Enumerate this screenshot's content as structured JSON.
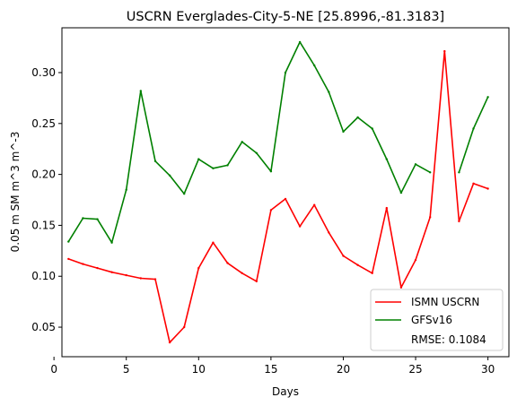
{
  "chart_data": {
    "type": "line",
    "title": "USCRN Everglades-City-5-NE [25.8996,-81.3183]",
    "xlabel": "Days",
    "ylabel": "0.05 m SM m^3 m^-3",
    "xlim": [
      0.55,
      31.45
    ],
    "ylim": [
      0.021,
      0.344
    ],
    "xticks": [
      0,
      5,
      10,
      15,
      20,
      25,
      30
    ],
    "xtick_labels": [
      "0",
      "5",
      "10",
      "15",
      "20",
      "25",
      "30"
    ],
    "yticks": [
      0.05,
      0.1,
      0.15,
      0.2,
      0.25,
      0.3
    ],
    "ytick_labels": [
      "0.05",
      "0.10",
      "0.15",
      "0.20",
      "0.25",
      "0.30"
    ],
    "grid": false,
    "legend_position": "lower-right",
    "annotation": "RMSE: 0.1084",
    "x": [
      1,
      2,
      3,
      4,
      5,
      6,
      7,
      8,
      9,
      10,
      11,
      12,
      13,
      14,
      15,
      16,
      17,
      18,
      19,
      20,
      21,
      22,
      23,
      24,
      25,
      26,
      27,
      28,
      29,
      30
    ],
    "series": [
      {
        "name": "ISMN USCRN",
        "color": "#ff0000",
        "values": [
          0.117,
          0.112,
          0.108,
          0.104,
          0.101,
          0.098,
          0.097,
          0.035,
          0.05,
          0.108,
          0.133,
          0.113,
          0.103,
          0.095,
          0.165,
          0.176,
          0.149,
          0.17,
          0.143,
          0.12,
          0.111,
          0.103,
          0.167,
          0.089,
          0.116,
          0.158,
          0.321,
          0.154,
          0.191,
          0.186
        ]
      },
      {
        "name": "GFSv16",
        "color": "#008000",
        "values": [
          0.134,
          0.157,
          0.156,
          0.133,
          0.185,
          0.282,
          0.213,
          0.199,
          0.181,
          0.215,
          0.206,
          0.209,
          0.232,
          0.221,
          0.203,
          0.3,
          0.33,
          0.307,
          0.281,
          0.242,
          0.256,
          0.245,
          0.215,
          0.182,
          0.21,
          0.202,
          null,
          0.202,
          0.245,
          0.276
        ]
      }
    ]
  }
}
